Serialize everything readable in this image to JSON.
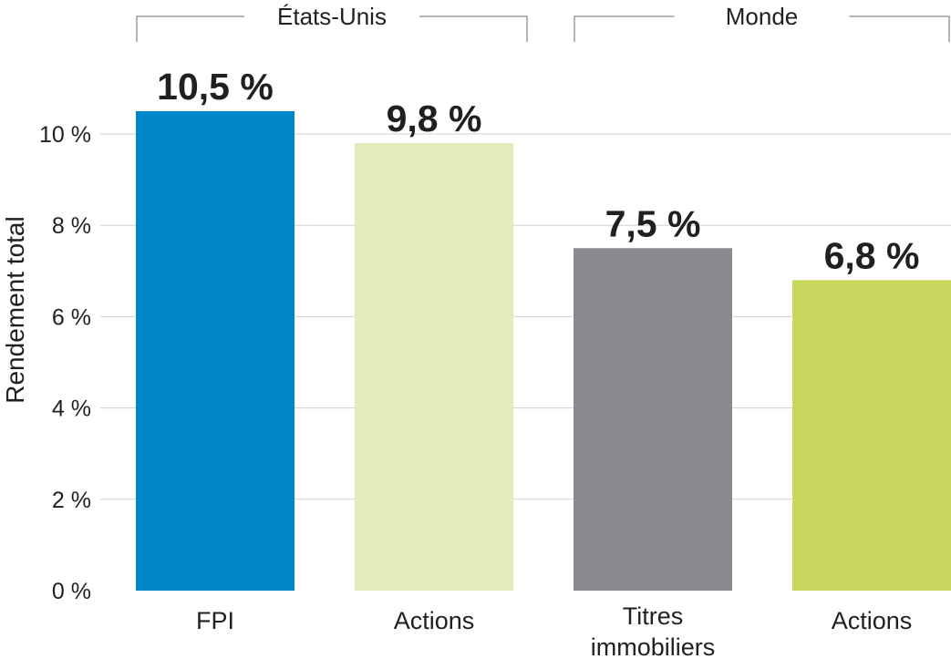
{
  "chart_data": {
    "type": "bar",
    "ylabel": "Rendement total",
    "ylim": [
      0,
      11
    ],
    "yticks": [
      0,
      2,
      4,
      6,
      8,
      10
    ],
    "ytick_labels": [
      "0 %",
      "2 %",
      "4 %",
      "6 %",
      "8 %",
      "10 %"
    ],
    "grid": true,
    "categories": [
      {
        "label": [
          "FPI"
        ],
        "value": 10.5,
        "data_label": "10,5 %",
        "color": "#0087c9"
      },
      {
        "label": [
          "Actions"
        ],
        "value": 9.8,
        "data_label": "9,8 %",
        "color": "#e4ebba"
      },
      {
        "label": [
          "Titres",
          "immobiliers"
        ],
        "value": 7.5,
        "data_label": "7,5 %",
        "color": "#8a898d"
      },
      {
        "label": [
          "Actions"
        ],
        "value": 6.8,
        "data_label": "6,8 %",
        "color": "#c8d85e"
      }
    ],
    "groups": [
      {
        "label": "États-Unis",
        "categories": [
          0,
          1
        ]
      },
      {
        "label": "Monde",
        "categories": [
          2,
          3
        ]
      }
    ]
  }
}
